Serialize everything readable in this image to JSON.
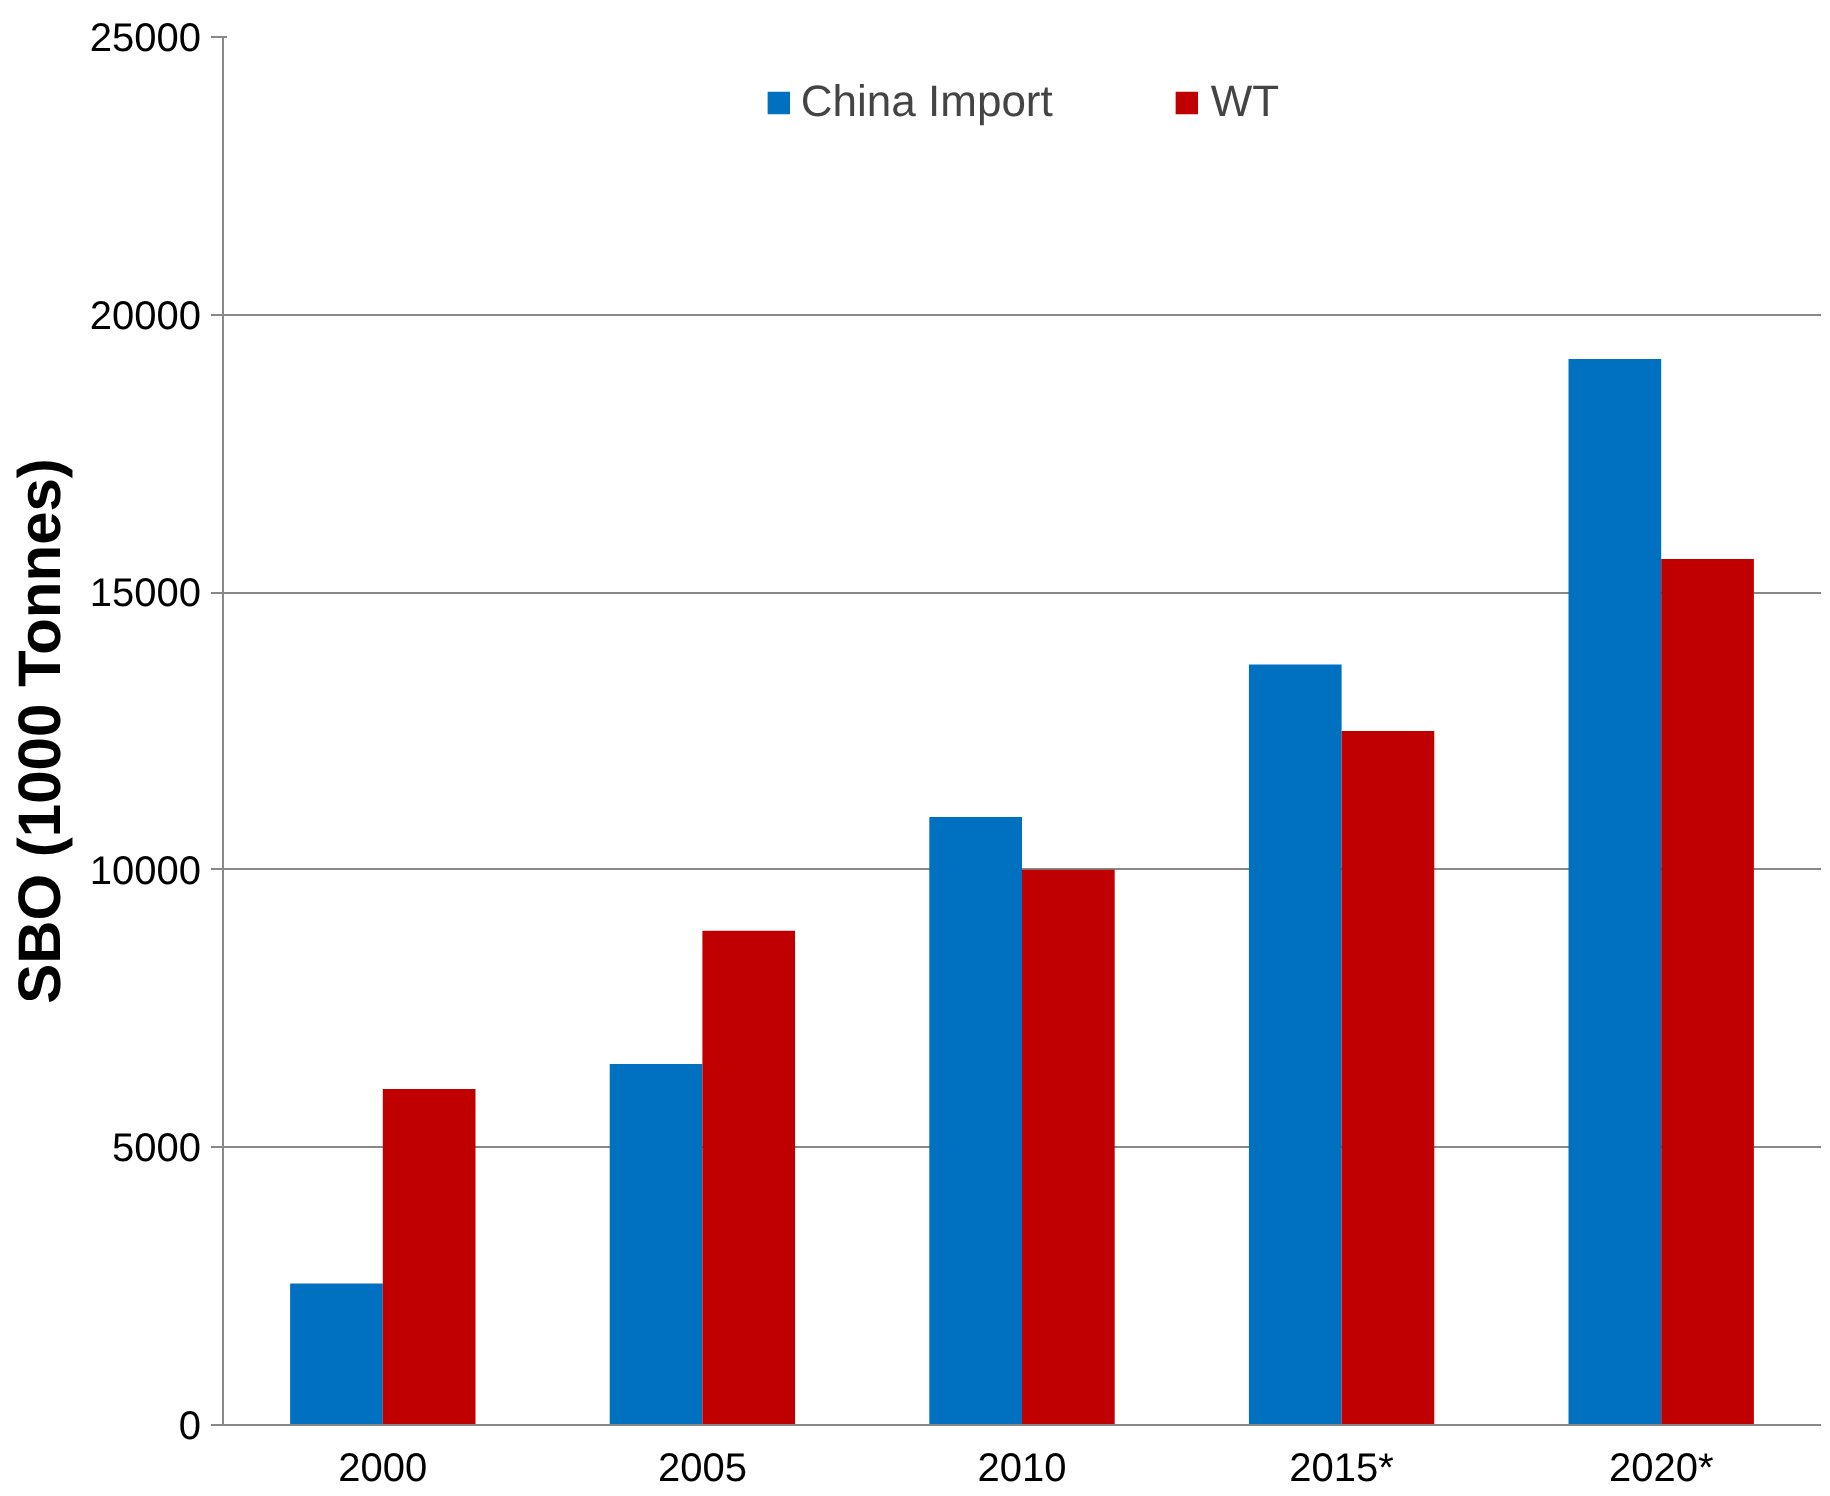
{
  "chart_data": {
    "type": "bar",
    "ylabel": "SBO (1000 Tonnes)",
    "categories": [
      "2000",
      "2005",
      "2010",
      "2015*",
      "2020*"
    ],
    "series": [
      {
        "name": "China Import",
        "color": "#0070c0",
        "values": [
          2550,
          6500,
          10950,
          13700,
          19200
        ]
      },
      {
        "name": "WT",
        "color": "#c00000",
        "values": [
          6050,
          8900,
          10000,
          12500,
          15600
        ]
      }
    ],
    "ylim": [
      0,
      25000
    ],
    "yticks": [
      0,
      5000,
      10000,
      15000,
      20000,
      25000
    ],
    "grid": "y",
    "legend": "top"
  }
}
